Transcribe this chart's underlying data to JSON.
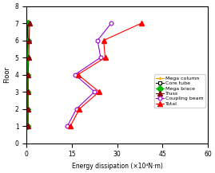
{
  "floors": [
    1,
    2,
    3,
    4,
    5,
    6,
    7
  ],
  "ylim": [
    0,
    8
  ],
  "xlim": [
    0,
    60
  ],
  "xticks": [
    0,
    15,
    30,
    45,
    60
  ],
  "yticks": [
    0,
    1,
    2,
    3,
    4,
    5,
    6,
    7,
    8
  ],
  "xlabel": "Energy dissipation (×10⁴N·m)",
  "ylabel": "Floor",
  "mega_column": [
    0.1,
    0.1,
    0.1,
    0.1,
    0.1,
    0.1,
    0.1
  ],
  "core_tube": [
    0.2,
    0.2,
    0.2,
    0.2,
    0.2,
    0.2,
    0.2
  ],
  "mega_brace": [
    0.3,
    0.3,
    0.3,
    0.3,
    0.3,
    0.5,
    0.5
  ],
  "truss": [
    0.5,
    0.5,
    0.5,
    0.5,
    0.7,
    0.8,
    1.0
  ],
  "coupling_beam": [
    13.5,
    16.5,
    22.5,
    16.0,
    24.5,
    23.5,
    28.0
  ],
  "total": [
    14.5,
    17.5,
    24.0,
    17.0,
    26.0,
    25.5,
    38.0
  ],
  "mega_column_color": "#FFA500",
  "core_tube_color": "#000000",
  "mega_brace_color": "#00BB00",
  "truss_color": "#8B0000",
  "coupling_beam_color": "#9900CC",
  "total_color": "#FF0000"
}
